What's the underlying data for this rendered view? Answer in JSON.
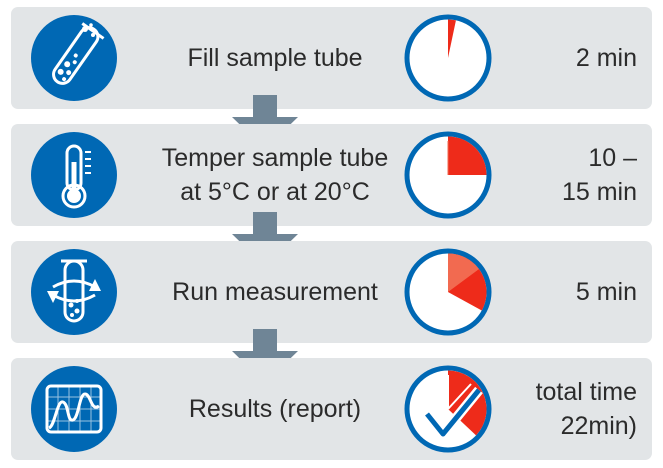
{
  "colors": {
    "panel": "#e2e5e7",
    "icon_blue": "#0068b4",
    "clock_ring": "#0068b4",
    "pie_red": "#ee2b1a",
    "pie_red_light": "#f26a50",
    "arrow": "#6f8596",
    "text": "#2b2b2b"
  },
  "steps": [
    {
      "icon": "test-tube-bubbles-icon",
      "label": "Fill sample tube",
      "time": "2 min",
      "pie_fraction": 0.033
    },
    {
      "icon": "thermometer-icon",
      "label": "Temper sample tube\nat 5°C or at 20°C",
      "time": "10 –\n15 min",
      "pie_fraction": 0.25
    },
    {
      "icon": "rotating-tube-icon",
      "label": "Run measurement",
      "time": "5 min",
      "pie_fraction": 0.33
    },
    {
      "icon": "results-graph-icon",
      "label": "Results (report)",
      "time": "total time\n22min)",
      "pie_fraction": 0.37
    }
  ]
}
